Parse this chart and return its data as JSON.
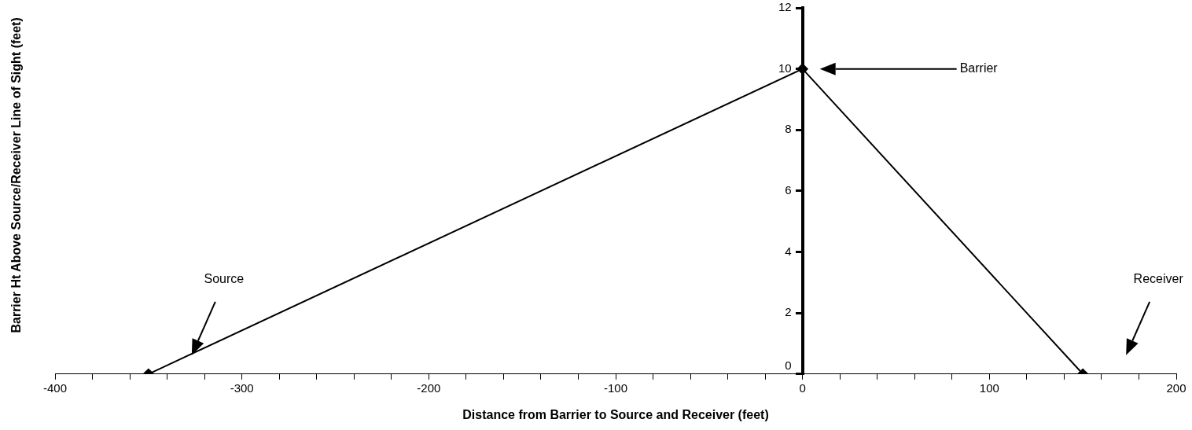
{
  "chart_data": {
    "type": "line",
    "xlabel": "Distance from Barrier to Source and Receiver (feet)",
    "ylabel": "Barrier Ht Above Source/Receiver Line of Sight (feet)",
    "x": [
      -350,
      0,
      150
    ],
    "series": [
      {
        "color": "#000000",
        "values": [
          0,
          10,
          0
        ]
      }
    ],
    "xlim": [
      -400,
      200
    ],
    "xticks": [
      -400,
      {
        "value": -380,
        "label": null
      },
      {
        "value": -360,
        "label": null
      },
      {
        "value": -340,
        "label": null
      },
      {
        "value": -320,
        "label": null
      },
      -300,
      {
        "value": -280,
        "label": null
      },
      {
        "value": -260,
        "label": null
      },
      {
        "value": -240,
        "label": null
      },
      {
        "value": -220,
        "label": null
      },
      -200,
      {
        "value": -180,
        "label": null
      },
      {
        "value": -160,
        "label": null
      },
      {
        "value": -140,
        "label": null
      },
      {
        "value": -120,
        "label": null
      },
      -100,
      {
        "value": -80,
        "label": null
      },
      {
        "value": -60,
        "label": null
      },
      {
        "value": -40,
        "label": null
      },
      {
        "value": -20,
        "label": null
      },
      0,
      {
        "value": 20,
        "label": null
      },
      {
        "value": 40,
        "label": null
      },
      {
        "value": 60,
        "label": null
      },
      {
        "value": 80,
        "label": null
      },
      100,
      {
        "value": 120,
        "label": null
      },
      {
        "value": 140,
        "label": null
      },
      {
        "value": 160,
        "label": null
      },
      {
        "value": 180,
        "label": null
      },
      200
    ],
    "ylim": [
      0,
      12
    ],
    "yticks": [
      0,
      2,
      4,
      6,
      8,
      10,
      12
    ],
    "grid": false,
    "legend": false,
    "marker": "diamond",
    "line_style": "solid",
    "annotations": [
      "Source",
      "Barrier",
      "Receiver"
    ]
  }
}
